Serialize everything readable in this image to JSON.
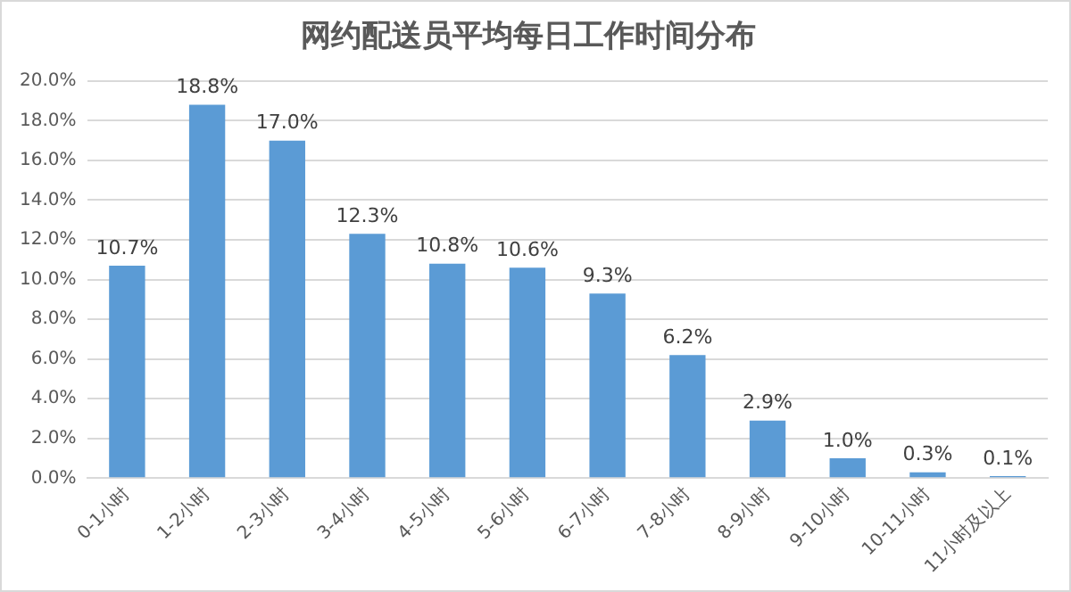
{
  "chart_data": {
    "type": "bar",
    "title": "网约配送员平均每日工作时间分布",
    "categories": [
      "0-1小时",
      "1-2小时",
      "2-3小时",
      "3-4小时",
      "4-5小时",
      "5-6小时",
      "6-7小时",
      "7-8小时",
      "8-9小时",
      "9-10小时",
      "10-11小时",
      "11小时及以上"
    ],
    "values": [
      10.7,
      18.8,
      17.0,
      12.3,
      10.8,
      10.6,
      9.3,
      6.2,
      2.9,
      1.0,
      0.3,
      0.1
    ],
    "value_labels": [
      "10.7%",
      "18.8%",
      "17.0%",
      "12.3%",
      "10.8%",
      "10.6%",
      "9.3%",
      "6.2%",
      "2.9%",
      "1.0%",
      "0.3%",
      "0.1%"
    ],
    "color": "#5b9bd5",
    "ylim": [
      0,
      20
    ],
    "yticks": [
      {
        "value": 0,
        "label": "0.0%"
      },
      {
        "value": 2,
        "label": "2.0%"
      },
      {
        "value": 4,
        "label": "4.0%"
      },
      {
        "value": 6,
        "label": "6.0%"
      },
      {
        "value": 8,
        "label": "8.0%"
      },
      {
        "value": 10,
        "label": "10.0%"
      },
      {
        "value": 12,
        "label": "12.0%"
      },
      {
        "value": 14,
        "label": "14.0%"
      },
      {
        "value": 16,
        "label": "16.0%"
      },
      {
        "value": 18,
        "label": "18.0%"
      },
      {
        "value": 20,
        "label": "20.0%"
      }
    ],
    "grid": "y",
    "legend": false
  }
}
